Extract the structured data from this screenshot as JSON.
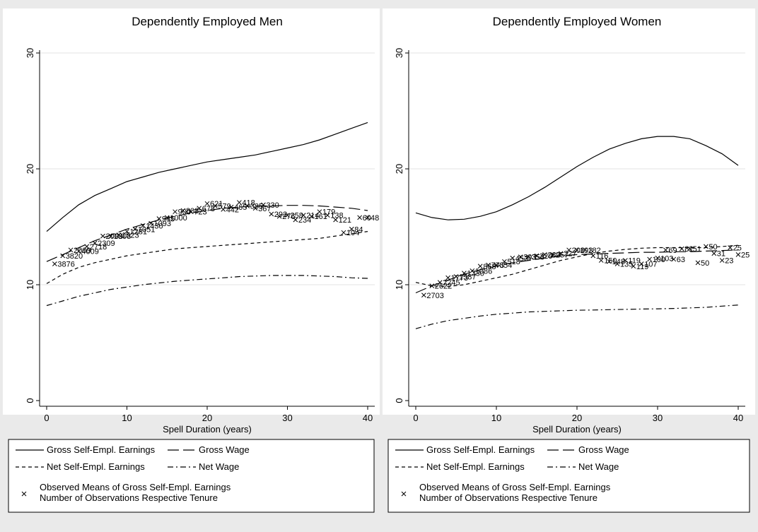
{
  "chart_data": [
    {
      "type": "line",
      "title": "Dependently Employed Men",
      "xlabel": "Spell Duration (years)",
      "ylabel": "",
      "xlim": [
        0,
        40
      ],
      "ylim": [
        0,
        30
      ],
      "xticks": [
        0,
        10,
        20,
        30,
        40
      ],
      "yticks": [
        0,
        10,
        20,
        30
      ],
      "grid": "horizontal",
      "legend": {
        "placement": "bottom",
        "entries": [
          "Gross Self-Empl. Earnings",
          "Gross Wage",
          "Net Self-Empl. Earnings",
          "Net Wage"
        ],
        "marker_line1": "Observed Means of Gross Self-Empl. Earnings",
        "marker_line2": "Number of Observations Respective Tenure"
      },
      "series": [
        {
          "name": "Gross Self-Empl. Earnings",
          "style": "solid",
          "x": [
            0,
            2,
            4,
            6,
            8,
            10,
            12,
            14,
            16,
            18,
            20,
            22,
            24,
            26,
            28,
            30,
            32,
            34,
            36,
            38,
            40
          ],
          "y": [
            14.6,
            15.8,
            16.9,
            17.7,
            18.3,
            18.9,
            19.3,
            19.7,
            20.0,
            20.3,
            20.6,
            20.8,
            21.0,
            21.2,
            21.5,
            21.8,
            22.1,
            22.5,
            23.0,
            23.5,
            24.0
          ]
        },
        {
          "name": "Gross Wage",
          "style": "longdash",
          "x": [
            0,
            2,
            4,
            6,
            8,
            10,
            12,
            14,
            16,
            18,
            20,
            22,
            24,
            26,
            28,
            30,
            32,
            34,
            36,
            38,
            40
          ],
          "y": [
            12.0,
            12.6,
            13.2,
            13.8,
            14.3,
            14.8,
            15.2,
            15.6,
            15.9,
            16.2,
            16.4,
            16.6,
            16.7,
            16.8,
            16.8,
            16.85,
            16.85,
            16.8,
            16.7,
            16.6,
            16.4
          ]
        },
        {
          "name": "Net Self-Empl. Earnings",
          "style": "shortdash",
          "x": [
            0,
            2,
            4,
            6,
            8,
            10,
            12,
            14,
            16,
            18,
            20,
            22,
            24,
            26,
            28,
            30,
            32,
            34,
            36,
            38,
            40
          ],
          "y": [
            10.1,
            10.9,
            11.5,
            11.9,
            12.2,
            12.5,
            12.7,
            12.9,
            13.1,
            13.2,
            13.3,
            13.4,
            13.5,
            13.6,
            13.7,
            13.8,
            13.9,
            14.0,
            14.2,
            14.4,
            14.6
          ]
        },
        {
          "name": "Net Wage",
          "style": "dashdot",
          "x": [
            0,
            2,
            4,
            6,
            8,
            10,
            12,
            14,
            16,
            18,
            20,
            22,
            24,
            26,
            28,
            30,
            32,
            34,
            36,
            38,
            40
          ],
          "y": [
            8.2,
            8.6,
            9.0,
            9.3,
            9.6,
            9.8,
            10.0,
            10.15,
            10.3,
            10.4,
            10.5,
            10.6,
            10.7,
            10.75,
            10.8,
            10.8,
            10.8,
            10.75,
            10.7,
            10.6,
            10.55
          ]
        }
      ],
      "observed": [
        {
          "x": 1,
          "y": 11.8,
          "n": "3876"
        },
        {
          "x": 2,
          "y": 12.5,
          "n": "3820"
        },
        {
          "x": 3,
          "y": 13.0,
          "n": "2009"
        },
        {
          "x": 4,
          "y": 12.9,
          "n": "4009"
        },
        {
          "x": 5,
          "y": 13.3,
          "n": "2718"
        },
        {
          "x": 6,
          "y": 13.6,
          "n": "2309"
        },
        {
          "x": 7,
          "y": 14.2,
          "n": "2003"
        },
        {
          "x": 8,
          "y": 14.2,
          "n": "1808"
        },
        {
          "x": 9,
          "y": 14.3,
          "n": "1523"
        },
        {
          "x": 10,
          "y": 14.6,
          "n": "1281"
        },
        {
          "x": 11,
          "y": 14.8,
          "n": "1051"
        },
        {
          "x": 12,
          "y": 15.1,
          "n": "1430"
        },
        {
          "x": 13,
          "y": 15.3,
          "n": "1093"
        },
        {
          "x": 14,
          "y": 15.7,
          "n": "945"
        },
        {
          "x": 15,
          "y": 15.8,
          "n": "1000"
        },
        {
          "x": 16,
          "y": 16.3,
          "n": "900"
        },
        {
          "x": 17,
          "y": 16.4,
          "n": "808"
        },
        {
          "x": 18,
          "y": 16.3,
          "n": "723"
        },
        {
          "x": 19,
          "y": 16.6,
          "n": "678"
        },
        {
          "x": 20,
          "y": 17.0,
          "n": "621"
        },
        {
          "x": 21,
          "y": 16.8,
          "n": "579"
        },
        {
          "x": 22,
          "y": 16.5,
          "n": "442"
        },
        {
          "x": 23,
          "y": 16.7,
          "n": "465"
        },
        {
          "x": 24,
          "y": 17.1,
          "n": "418"
        },
        {
          "x": 25,
          "y": 16.8,
          "n": "385"
        },
        {
          "x": 26,
          "y": 16.6,
          "n": "367"
        },
        {
          "x": 27,
          "y": 16.9,
          "n": "330"
        },
        {
          "x": 28,
          "y": 16.1,
          "n": "292"
        },
        {
          "x": 29,
          "y": 15.9,
          "n": "276"
        },
        {
          "x": 30,
          "y": 16.0,
          "n": "258"
        },
        {
          "x": 31,
          "y": 15.6,
          "n": "234"
        },
        {
          "x": 32,
          "y": 16.0,
          "n": "214"
        },
        {
          "x": 33,
          "y": 15.9,
          "n": "161"
        },
        {
          "x": 34,
          "y": 16.3,
          "n": "179"
        },
        {
          "x": 35,
          "y": 16.0,
          "n": "138"
        },
        {
          "x": 36,
          "y": 15.6,
          "n": "121"
        },
        {
          "x": 37,
          "y": 14.5,
          "n": "104"
        },
        {
          "x": 38,
          "y": 14.8,
          "n": "84"
        },
        {
          "x": 39,
          "y": 15.8,
          "n": "60"
        },
        {
          "x": 40,
          "y": 15.8,
          "n": "48"
        }
      ]
    },
    {
      "type": "line",
      "title": "Dependently Employed Women",
      "xlabel": "Spell Duration (years)",
      "ylabel": "",
      "xlim": [
        0,
        40
      ],
      "ylim": [
        0,
        30
      ],
      "xticks": [
        0,
        10,
        20,
        30,
        40
      ],
      "yticks": [
        0,
        10,
        20,
        30
      ],
      "grid": "horizontal",
      "legend": {
        "placement": "bottom",
        "entries": [
          "Gross Self-Empl. Earnings",
          "Gross Wage",
          "Net Self-Empl. Earnings",
          "Net Wage"
        ],
        "marker_line1": "Observed Means of Gross Self-Empl. Earnings",
        "marker_line2": "Number of Observations Respective Tenure"
      },
      "series": [
        {
          "name": "Gross Self-Empl. Earnings",
          "style": "solid",
          "x": [
            0,
            2,
            4,
            6,
            8,
            10,
            12,
            14,
            16,
            18,
            20,
            22,
            24,
            26,
            28,
            30,
            32,
            34,
            36,
            38,
            40
          ],
          "y": [
            16.2,
            15.8,
            15.6,
            15.65,
            15.9,
            16.3,
            16.9,
            17.6,
            18.4,
            19.3,
            20.2,
            21.0,
            21.7,
            22.2,
            22.6,
            22.8,
            22.8,
            22.6,
            22.0,
            21.3,
            20.3
          ]
        },
        {
          "name": "Gross Wage",
          "style": "longdash",
          "x": [
            0,
            2,
            4,
            6,
            8,
            10,
            12,
            14,
            16,
            18,
            20,
            22,
            24,
            26,
            28,
            30,
            32,
            34,
            36,
            38,
            40
          ],
          "y": [
            9.3,
            9.9,
            10.4,
            10.9,
            11.3,
            11.6,
            11.9,
            12.1,
            12.3,
            12.5,
            12.6,
            12.65,
            12.7,
            12.75,
            12.8,
            12.8,
            12.85,
            12.85,
            12.9,
            12.95,
            13.0
          ]
        },
        {
          "name": "Net Self-Empl. Earnings",
          "style": "shortdash",
          "x": [
            0,
            2,
            4,
            6,
            8,
            10,
            12,
            14,
            16,
            18,
            20,
            22,
            24,
            26,
            28,
            30,
            32,
            34,
            36,
            38,
            40
          ],
          "y": [
            10.2,
            9.9,
            9.85,
            10.0,
            10.3,
            10.6,
            10.9,
            11.3,
            11.7,
            12.1,
            12.4,
            12.7,
            12.9,
            13.05,
            13.15,
            13.2,
            13.2,
            13.2,
            13.2,
            13.3,
            13.4
          ]
        },
        {
          "name": "Net Wage",
          "style": "dashdot",
          "x": [
            0,
            2,
            4,
            6,
            8,
            10,
            12,
            14,
            16,
            18,
            20,
            22,
            24,
            26,
            28,
            30,
            32,
            34,
            36,
            38,
            40
          ],
          "y": [
            6.2,
            6.6,
            6.9,
            7.1,
            7.3,
            7.45,
            7.55,
            7.65,
            7.7,
            7.75,
            7.8,
            7.82,
            7.85,
            7.87,
            7.9,
            7.92,
            7.95,
            8.0,
            8.05,
            8.15,
            8.25
          ]
        }
      ],
      "observed": [
        {
          "x": 1,
          "y": 9.1,
          "n": "2703"
        },
        {
          "x": 2,
          "y": 9.9,
          "n": "2622"
        },
        {
          "x": 3,
          "y": 10.2,
          "n": "2245"
        },
        {
          "x": 4,
          "y": 10.6,
          "n": "1773"
        },
        {
          "x": 5,
          "y": 10.7,
          "n": "1587"
        },
        {
          "x": 6,
          "y": 11.0,
          "n": "1330"
        },
        {
          "x": 7,
          "y": 11.2,
          "n": "1086"
        },
        {
          "x": 8,
          "y": 11.6,
          "n": "868"
        },
        {
          "x": 9,
          "y": 11.7,
          "n": "773"
        },
        {
          "x": 10,
          "y": 11.7,
          "n": "654"
        },
        {
          "x": 11,
          "y": 12.0,
          "n": "518"
        },
        {
          "x": 12,
          "y": 12.3,
          "n": "453"
        },
        {
          "x": 13,
          "y": 12.4,
          "n": "393"
        },
        {
          "x": 14,
          "y": 12.4,
          "n": "356"
        },
        {
          "x": 15,
          "y": 12.5,
          "n": "320"
        },
        {
          "x": 16,
          "y": 12.6,
          "n": "280"
        },
        {
          "x": 17,
          "y": 12.6,
          "n": "257"
        },
        {
          "x": 18,
          "y": 12.7,
          "n": "227"
        },
        {
          "x": 19,
          "y": 13.0,
          "n": "208"
        },
        {
          "x": 20,
          "y": 13.0,
          "n": "193"
        },
        {
          "x": 21,
          "y": 13.0,
          "n": "182"
        },
        {
          "x": 22,
          "y": 12.5,
          "n": "116"
        },
        {
          "x": 23,
          "y": 12.1,
          "n": "150"
        },
        {
          "x": 24,
          "y": 12.0,
          "n": "148"
        },
        {
          "x": 25,
          "y": 11.8,
          "n": "135"
        },
        {
          "x": 26,
          "y": 12.1,
          "n": "119"
        },
        {
          "x": 27,
          "y": 11.6,
          "n": "119"
        },
        {
          "x": 28,
          "y": 11.8,
          "n": "107"
        },
        {
          "x": 29,
          "y": 12.2,
          "n": "100"
        },
        {
          "x": 30,
          "y": 12.3,
          "n": "103"
        },
        {
          "x": 31,
          "y": 13.0,
          "n": "69"
        },
        {
          "x": 32,
          "y": 12.2,
          "n": "63"
        },
        {
          "x": 33,
          "y": 13.1,
          "n": "82"
        },
        {
          "x": 34,
          "y": 13.1,
          "n": "51"
        },
        {
          "x": 35,
          "y": 11.9,
          "n": "50"
        },
        {
          "x": 36,
          "y": 13.3,
          "n": "50"
        },
        {
          "x": 37,
          "y": 12.7,
          "n": "31"
        },
        {
          "x": 38,
          "y": 12.1,
          "n": "23"
        },
        {
          "x": 39,
          "y": 13.2,
          "n": "25"
        },
        {
          "x": 40,
          "y": 12.6,
          "n": "25"
        }
      ]
    }
  ]
}
